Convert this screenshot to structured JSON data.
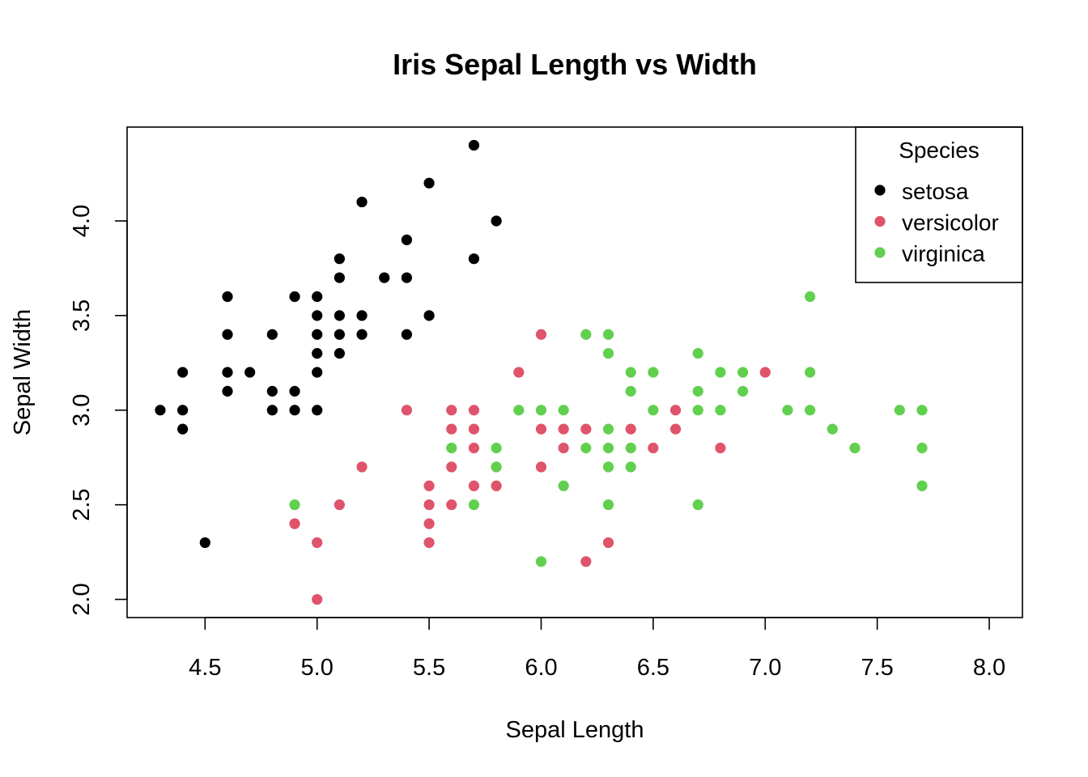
{
  "chart_data": {
    "type": "scatter",
    "title": "Iris Sepal Length vs Width",
    "xlabel": "Sepal Length",
    "ylabel": "Sepal Width",
    "xlim": [
      4.3,
      8.0
    ],
    "ylim": [
      2.0,
      4.4
    ],
    "x_ticks": [
      "4.5",
      "5.0",
      "5.5",
      "6.0",
      "6.5",
      "7.0",
      "7.5",
      "8.0"
    ],
    "y_ticks": [
      "2.0",
      "2.5",
      "3.0",
      "3.5",
      "4.0"
    ],
    "grid": false,
    "legend": {
      "title": "Species",
      "position": "top-right"
    },
    "series": [
      {
        "name": "setosa",
        "color": "#000000",
        "points": [
          [
            4.3,
            3.0
          ],
          [
            4.4,
            3.2
          ],
          [
            4.4,
            3.0
          ],
          [
            4.4,
            2.9
          ],
          [
            4.5,
            2.3
          ],
          [
            4.6,
            3.6
          ],
          [
            4.6,
            3.4
          ],
          [
            4.6,
            3.2
          ],
          [
            4.6,
            3.1
          ],
          [
            4.7,
            3.2
          ],
          [
            4.8,
            3.4
          ],
          [
            4.8,
            3.1
          ],
          [
            4.8,
            3.0
          ],
          [
            4.9,
            3.6
          ],
          [
            4.9,
            3.1
          ],
          [
            4.9,
            3.0
          ],
          [
            5.0,
            3.6
          ],
          [
            5.0,
            3.5
          ],
          [
            5.0,
            3.4
          ],
          [
            5.0,
            3.3
          ],
          [
            5.0,
            3.2
          ],
          [
            5.0,
            3.0
          ],
          [
            5.1,
            3.8
          ],
          [
            5.1,
            3.7
          ],
          [
            5.1,
            3.5
          ],
          [
            5.1,
            3.4
          ],
          [
            5.1,
            3.3
          ],
          [
            5.2,
            4.1
          ],
          [
            5.2,
            3.5
          ],
          [
            5.2,
            3.4
          ],
          [
            5.3,
            3.7
          ],
          [
            5.4,
            3.9
          ],
          [
            5.4,
            3.7
          ],
          [
            5.4,
            3.4
          ],
          [
            5.5,
            4.2
          ],
          [
            5.5,
            3.5
          ],
          [
            5.7,
            4.4
          ],
          [
            5.7,
            3.8
          ],
          [
            5.8,
            4.0
          ]
        ]
      },
      {
        "name": "versicolor",
        "color": "#DF536B",
        "points": [
          [
            4.9,
            2.4
          ],
          [
            5.0,
            2.3
          ],
          [
            5.0,
            2.0
          ],
          [
            5.1,
            2.5
          ],
          [
            5.2,
            2.7
          ],
          [
            5.4,
            3.0
          ],
          [
            5.5,
            2.6
          ],
          [
            5.5,
            2.5
          ],
          [
            5.5,
            2.4
          ],
          [
            5.5,
            2.3
          ],
          [
            5.6,
            3.0
          ],
          [
            5.6,
            2.9
          ],
          [
            5.6,
            2.7
          ],
          [
            5.6,
            2.5
          ],
          [
            5.7,
            3.0
          ],
          [
            5.7,
            2.9
          ],
          [
            5.7,
            2.8
          ],
          [
            5.7,
            2.6
          ],
          [
            5.8,
            2.6
          ],
          [
            5.9,
            3.2
          ],
          [
            6.0,
            3.4
          ],
          [
            6.0,
            2.9
          ],
          [
            6.0,
            2.7
          ],
          [
            6.1,
            2.9
          ],
          [
            6.1,
            2.8
          ],
          [
            6.2,
            2.9
          ],
          [
            6.2,
            2.2
          ],
          [
            6.3,
            2.3
          ],
          [
            6.4,
            2.9
          ],
          [
            6.5,
            2.8
          ],
          [
            6.6,
            3.0
          ],
          [
            6.6,
            2.9
          ],
          [
            6.8,
            2.8
          ],
          [
            7.0,
            3.2
          ]
        ]
      },
      {
        "name": "virginica",
        "color": "#61D04F",
        "points": [
          [
            4.9,
            2.5
          ],
          [
            5.6,
            2.8
          ],
          [
            5.7,
            2.5
          ],
          [
            5.8,
            2.8
          ],
          [
            5.8,
            2.7
          ],
          [
            5.9,
            3.0
          ],
          [
            6.0,
            3.0
          ],
          [
            6.0,
            2.2
          ],
          [
            6.1,
            3.0
          ],
          [
            6.1,
            2.6
          ],
          [
            6.2,
            3.4
          ],
          [
            6.2,
            2.8
          ],
          [
            6.3,
            3.4
          ],
          [
            6.3,
            3.3
          ],
          [
            6.3,
            2.9
          ],
          [
            6.3,
            2.8
          ],
          [
            6.3,
            2.7
          ],
          [
            6.3,
            2.5
          ],
          [
            6.4,
            3.2
          ],
          [
            6.4,
            3.1
          ],
          [
            6.4,
            2.8
          ],
          [
            6.4,
            2.7
          ],
          [
            6.5,
            3.2
          ],
          [
            6.5,
            3.0
          ],
          [
            6.7,
            3.3
          ],
          [
            6.7,
            3.1
          ],
          [
            6.7,
            3.0
          ],
          [
            6.7,
            2.5
          ],
          [
            6.8,
            3.2
          ],
          [
            6.8,
            3.0
          ],
          [
            6.9,
            3.2
          ],
          [
            6.9,
            3.1
          ],
          [
            7.1,
            3.0
          ],
          [
            7.2,
            3.6
          ],
          [
            7.2,
            3.2
          ],
          [
            7.2,
            3.0
          ],
          [
            7.3,
            2.9
          ],
          [
            7.4,
            2.8
          ],
          [
            7.6,
            3.0
          ],
          [
            7.7,
            3.0
          ],
          [
            7.7,
            2.8
          ],
          [
            7.7,
            2.6
          ]
        ]
      }
    ]
  }
}
